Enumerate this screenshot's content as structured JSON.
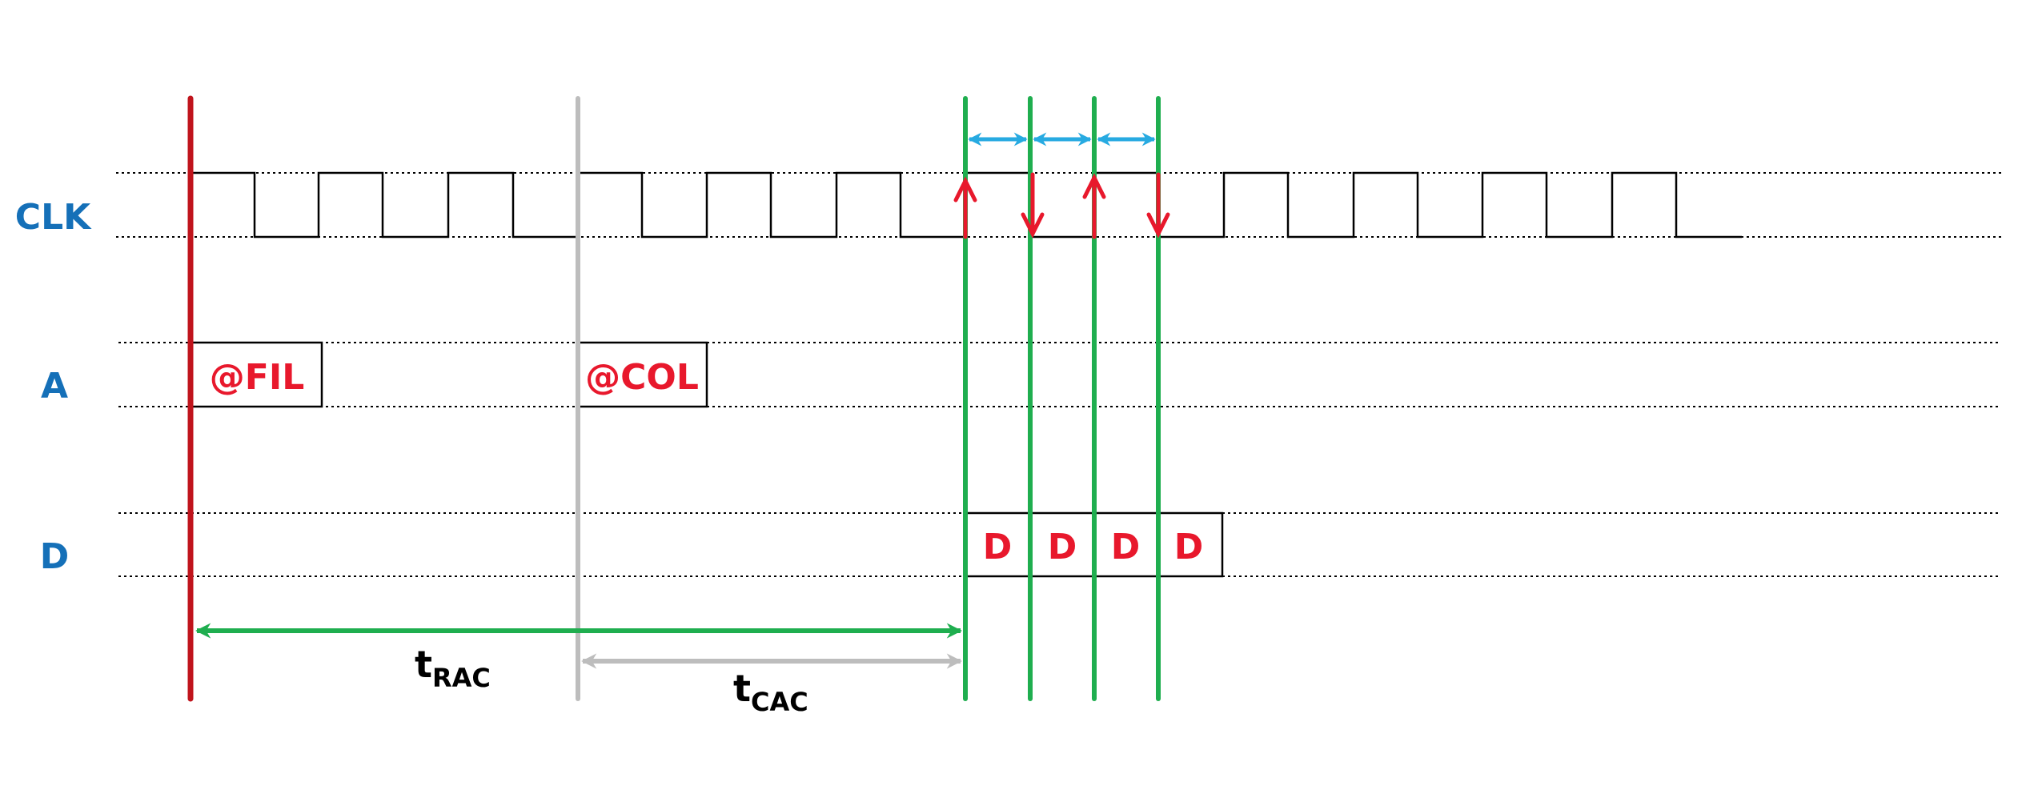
{
  "signals": {
    "clk": "CLK",
    "address": "A",
    "data": "D"
  },
  "address_boxes": {
    "row": "@FIL",
    "column": "@COL"
  },
  "data_boxes": [
    "D",
    "D",
    "D",
    "D"
  ],
  "timing": {
    "trac": {
      "main": "t",
      "sub": "RAC"
    },
    "tcac": {
      "main": "t",
      "sub": "CAC"
    }
  },
  "colors": {
    "signal_label": "#1570b8",
    "box_text": "#e8182c",
    "ras_line": "#c0141c",
    "cas_line": "#bdbdbd",
    "data_lines": "#1fae4f",
    "period_arrows": "#27aae1",
    "edge_arrows": "#e8182c",
    "waveform": "#000000"
  },
  "clock": {
    "high_count": 12
  }
}
